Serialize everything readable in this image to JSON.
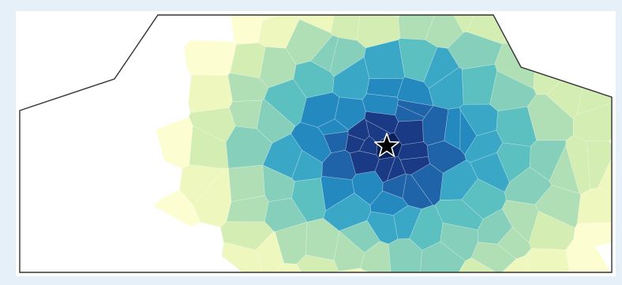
{
  "map": {
    "type": "voronoi-choropleth",
    "colormap": "YlGnBu",
    "color_stops": [
      "#ffffff",
      "#fcfed2",
      "#eef7be",
      "#d3edb3",
      "#b0dfb5",
      "#86cfbb",
      "#5cbfc0",
      "#3aa7c7",
      "#2489bf",
      "#1f63a8",
      "#1a3a86",
      "#0b1f5a"
    ],
    "outline_color": "#333333",
    "marker": {
      "icon": "star-icon",
      "fill": "#000000",
      "stroke": "#ffffff",
      "role": "source-location"
    },
    "legend": false,
    "grid": false
  }
}
